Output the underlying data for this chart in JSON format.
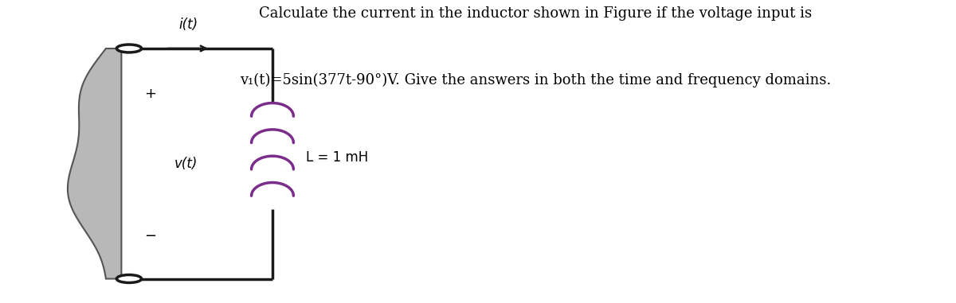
{
  "title_line1": "Calculate the current in the inductor shown in Figure if the voltage input is",
  "title_line2": "v₁(t)=5sin(377t-90°)V. Give the answers in both the time and frequency domains.",
  "title_fontsize": 13,
  "line_color": "#1a1a1a",
  "line_width": 2.5,
  "plus_label": "+",
  "minus_label": "−",
  "vt_label": "v(t)",
  "it_label": "i(t)",
  "L_label": "L = 1 mH",
  "inductor_color": "#7b2d8b",
  "figure_width": 12.0,
  "figure_height": 3.81,
  "dpi": 100,
  "bg_color": "white"
}
